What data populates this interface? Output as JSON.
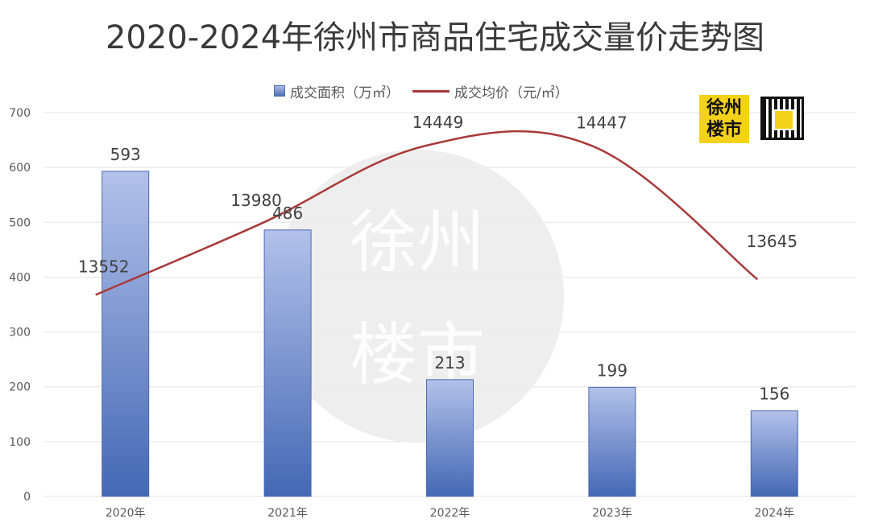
{
  "chart_data": {
    "type": "bar",
    "title": "2020-2024年徐州市商品住宅成交量价走势图",
    "categories": [
      "2020年",
      "2021年",
      "2022年",
      "2023年",
      "2024年"
    ],
    "series": [
      {
        "name": "成交面积（万㎡）",
        "type": "bar",
        "values": [
          593,
          486,
          213,
          199,
          156
        ]
      },
      {
        "name": "成交均价（元/㎡）",
        "type": "line",
        "values": [
          13552,
          13980,
          14449,
          14447,
          13645
        ]
      }
    ],
    "y_ticks": [
      "0",
      "100",
      "200",
      "300",
      "400",
      "500",
      "600",
      "700"
    ],
    "ylim": [
      0,
      700
    ],
    "legend": "top-center",
    "grid": true,
    "colors": {
      "bar_top": "#b3c1ea",
      "bar_bottom": "#4468b4",
      "line": "#a83a3a",
      "grid": "#e3e3e3"
    }
  },
  "watermark": {
    "text": "徐州楼市"
  },
  "logo": {
    "text": "徐州楼市",
    "line1": "徐州",
    "line2": "楼市"
  }
}
